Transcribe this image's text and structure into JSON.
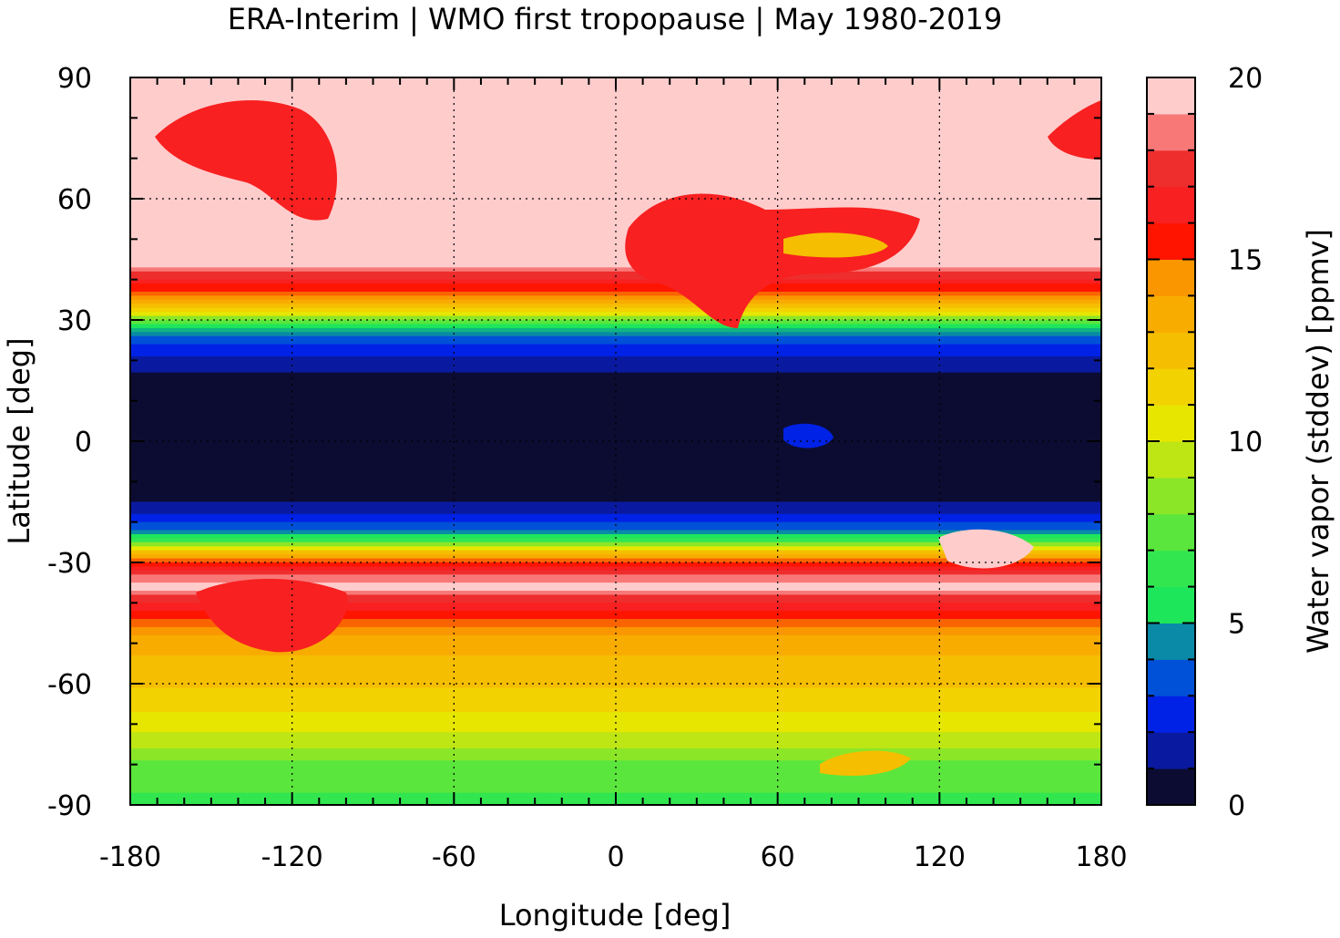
{
  "chart_data": {
    "type": "heatmap",
    "title": "ERA-Interim | WMO first tropopause | May 1980-2019",
    "xlabel": "Longitude [deg]",
    "ylabel": "Latitude [deg]",
    "colorbar_label": "Water vapor (stddev) [ppmv]",
    "xlim": [
      -180,
      180
    ],
    "ylim": [
      -90,
      90
    ],
    "x_ticks": [
      -180,
      -120,
      -60,
      0,
      60,
      120,
      180
    ],
    "x_tick_labels": [
      "-180",
      "-120",
      "-60",
      "0",
      "60",
      "120",
      "180"
    ],
    "y_ticks": [
      90,
      60,
      30,
      0,
      -30,
      -60,
      -90
    ],
    "y_tick_labels": [
      "90",
      "60",
      "30",
      "0",
      "-30",
      "-60",
      "-90"
    ],
    "grid": true,
    "colorbar": {
      "range": [
        0,
        20
      ],
      "ticks": [
        20,
        15,
        10,
        5,
        0
      ],
      "tick_labels": [
        "20",
        "15",
        "10",
        "5",
        "0"
      ],
      "levels": 20,
      "colors": [
        "#0c0c33",
        "#0a1aa0",
        "#0022e6",
        "#0050d8",
        "#0a8aa6",
        "#10b482",
        "#1ee65a",
        "#32e650",
        "#5ae63c",
        "#8ce628",
        "#bee614",
        "#e6e600",
        "#f2d200",
        "#f5be00",
        "#f8ac00",
        "#fa9600",
        "#fa6400",
        "#ff1400",
        "#f82020",
        "#ee2d2d",
        "#f87878",
        "#ffcccc"
      ]
    },
    "zonal_profile": {
      "description_levels_by_latitude": true,
      "latitudes": [
        90,
        75,
        60,
        45,
        38,
        33,
        30,
        27,
        24,
        20,
        15,
        10,
        0,
        -10,
        -15,
        -18,
        -21,
        -24,
        -27,
        -30,
        -36,
        -40,
        -50,
        -60,
        -70,
        -80,
        -90
      ],
      "values": [
        20,
        20,
        20,
        20,
        16,
        12,
        8,
        4,
        2.5,
        1.5,
        0.5,
        0.3,
        0.3,
        0.3,
        0.8,
        2,
        3,
        6,
        11,
        16,
        20,
        17,
        13,
        12,
        10.5,
        8,
        7
      ]
    }
  }
}
